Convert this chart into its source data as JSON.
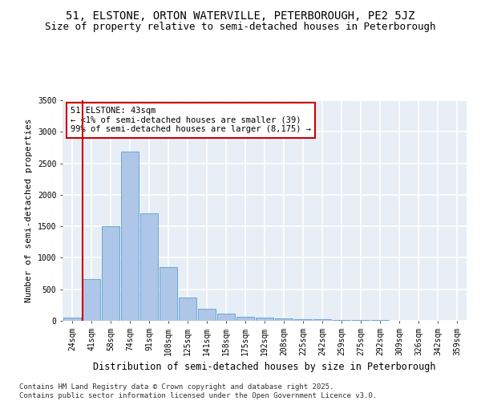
{
  "title1": "51, ELSTONE, ORTON WATERVILLE, PETERBOROUGH, PE2 5JZ",
  "title2": "Size of property relative to semi-detached houses in Peterborough",
  "xlabel": "Distribution of semi-detached houses by size in Peterborough",
  "ylabel": "Number of semi-detached properties",
  "categories": [
    "24sqm",
    "41sqm",
    "58sqm",
    "74sqm",
    "91sqm",
    "108sqm",
    "125sqm",
    "141sqm",
    "158sqm",
    "175sqm",
    "192sqm",
    "208sqm",
    "225sqm",
    "242sqm",
    "259sqm",
    "275sqm",
    "292sqm",
    "309sqm",
    "326sqm",
    "342sqm",
    "359sqm"
  ],
  "values": [
    50,
    660,
    1500,
    2680,
    1700,
    855,
    370,
    190,
    120,
    65,
    45,
    35,
    30,
    20,
    15,
    10,
    8,
    5,
    3,
    2,
    1
  ],
  "bar_color": "#aec6e8",
  "bar_edge_color": "#5a9fd4",
  "vline_color": "#cc0000",
  "annotation_text": "51 ELSTONE: 43sqm\n← <1% of semi-detached houses are smaller (39)\n99% of semi-detached houses are larger (8,175) →",
  "annotation_box_color": "#ffffff",
  "annotation_edge_color": "#cc0000",
  "ylim": [
    0,
    3500
  ],
  "yticks": [
    0,
    500,
    1000,
    1500,
    2000,
    2500,
    3000,
    3500
  ],
  "bg_color": "#e8eef5",
  "grid_color": "#ffffff",
  "footer": "Contains HM Land Registry data © Crown copyright and database right 2025.\nContains public sector information licensed under the Open Government Licence v3.0.",
  "title1_fontsize": 10,
  "title2_fontsize": 9,
  "xlabel_fontsize": 8.5,
  "ylabel_fontsize": 8,
  "tick_fontsize": 7,
  "footer_fontsize": 6.5,
  "annot_fontsize": 7.5
}
